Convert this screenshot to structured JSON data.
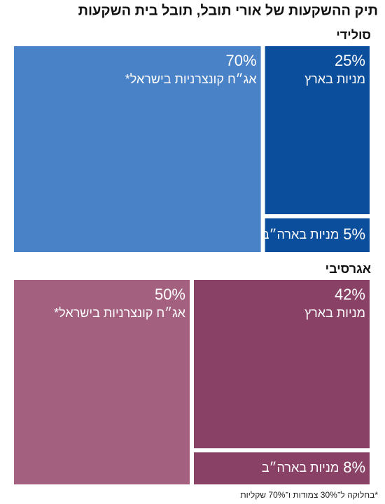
{
  "title": "תיק ההשקעות של אורי תובל, תובל בית השקעות",
  "chart_data": [
    {
      "type": "treemap",
      "title": "סולידי",
      "categories": [
        "אג״ח קונצרניות בישראל*",
        "מניות בארץ",
        "מניות בארה״ב"
      ],
      "values": [
        70,
        25,
        5
      ],
      "value_labels": [
        "70%",
        "25%",
        "5%"
      ],
      "colors": [
        "#4a82c8",
        "#0b4f9c",
        "#0b4f9c"
      ]
    },
    {
      "type": "treemap",
      "title": "אגרסיבי",
      "categories": [
        "אג״ח קונצרניות בישראל*",
        "מניות בארץ",
        "מניות בארה״ב"
      ],
      "values": [
        50,
        42,
        8
      ],
      "value_labels": [
        "50%",
        "42%",
        "8%"
      ],
      "colors": [
        "#a3607f",
        "#8a4166",
        "#8a4166"
      ]
    }
  ],
  "footnote": "*בחלוקה ל־30% צמודות ו־70% שקליות"
}
